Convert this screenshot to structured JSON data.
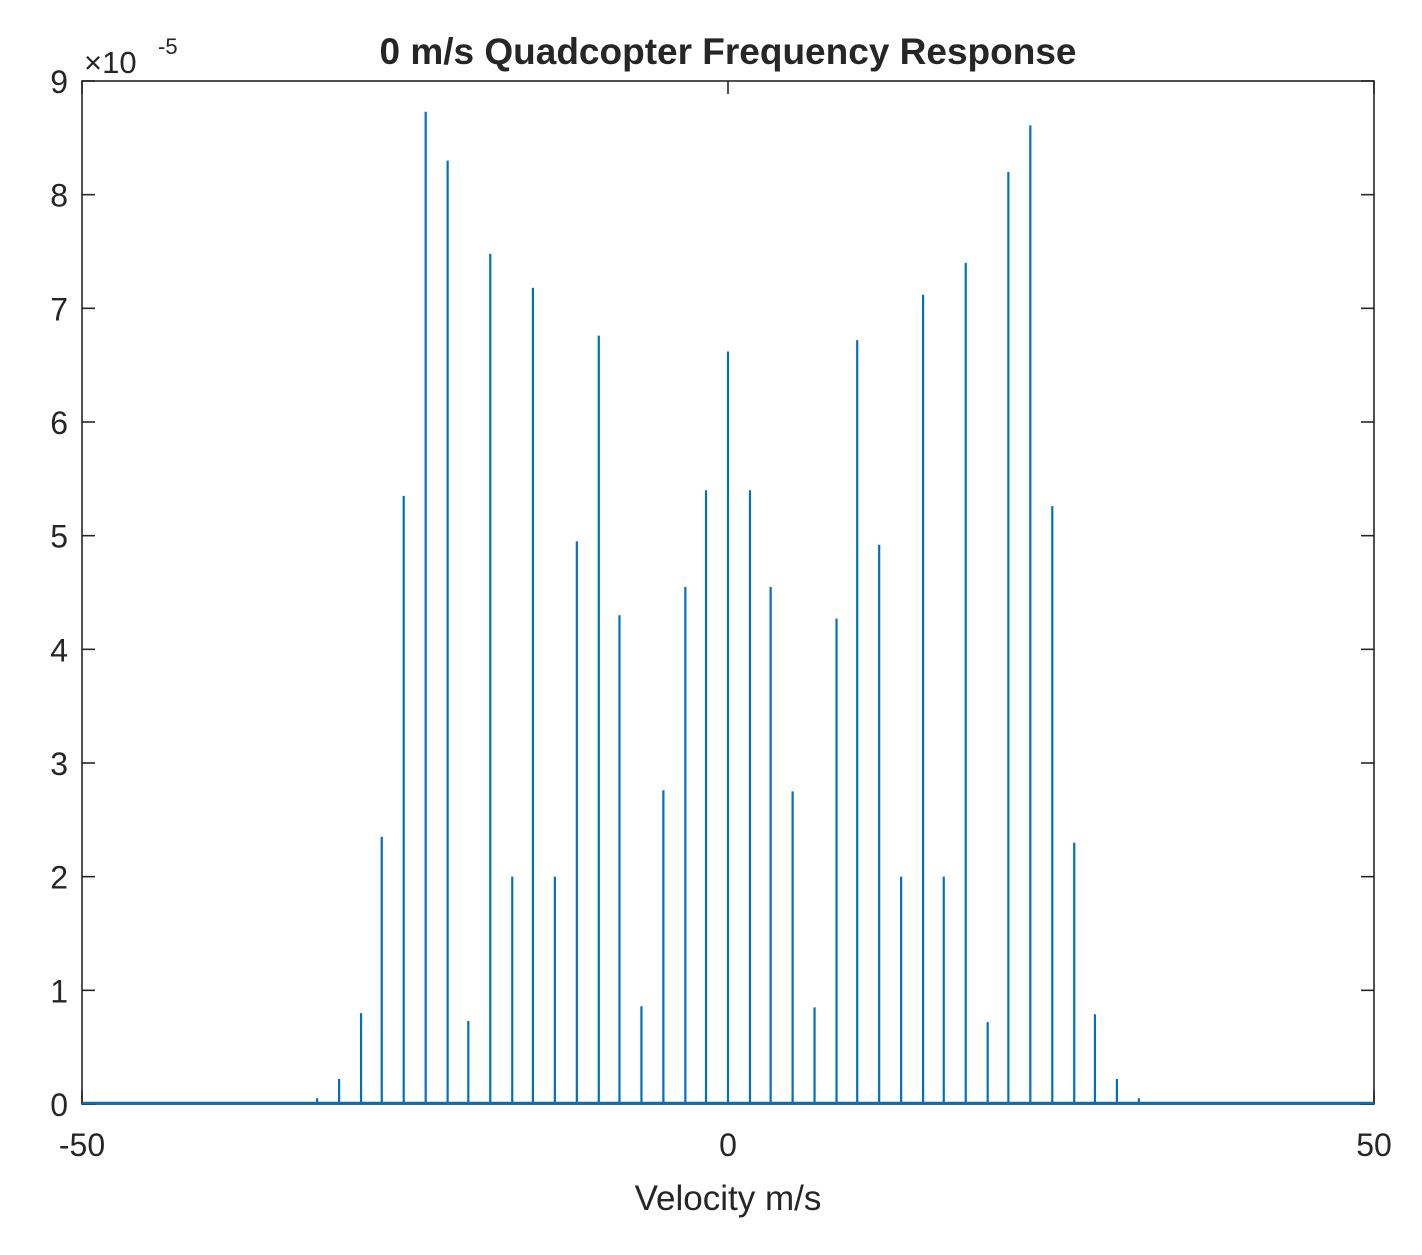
{
  "chart_data": {
    "type": "line",
    "title": "0 m/s Quadcopter Frequency Response",
    "xlabel": "Velocity m/s",
    "ylabel": "",
    "xlim": [
      -50,
      50
    ],
    "ylim": [
      0,
      9
    ],
    "x_ticks": [
      "-50",
      "0",
      "50"
    ],
    "y_ticks": [
      "0",
      "1",
      "2",
      "3",
      "4",
      "5",
      "6",
      "7",
      "8",
      "9"
    ],
    "y_multiplier": {
      "prefix": "×10",
      "exponent": "-5"
    },
    "grid": false,
    "legend": "none",
    "series_color": "#0072BD",
    "series": [
      {
        "x": [
          -31.8,
          -30.1,
          -28.4,
          -26.8,
          -25.1,
          -23.4,
          -21.7,
          -20.1,
          -18.4,
          -16.7,
          -15.1,
          -13.4,
          -11.7,
          -10.0,
          -8.4,
          -6.7,
          -5.0,
          -3.3,
          -1.7,
          0.0,
          1.7,
          3.3,
          5.0,
          6.7,
          8.4,
          10.0,
          11.7,
          13.4,
          15.1,
          16.7,
          18.4,
          20.1,
          21.7,
          23.4,
          25.1,
          26.8,
          28.4,
          30.1,
          31.8
        ],
        "y": [
          0.05,
          0.22,
          0.8,
          2.35,
          5.35,
          8.73,
          8.3,
          0.73,
          7.48,
          2.0,
          7.18,
          2.0,
          4.95,
          6.76,
          4.3,
          0.86,
          2.76,
          4.55,
          5.4,
          6.62,
          5.4,
          4.55,
          2.75,
          0.85,
          4.27,
          6.72,
          4.92,
          2.0,
          7.12,
          2.0,
          7.4,
          0.72,
          8.2,
          8.61,
          5.26,
          2.3,
          0.79,
          0.22,
          0.05
        ]
      }
    ]
  }
}
